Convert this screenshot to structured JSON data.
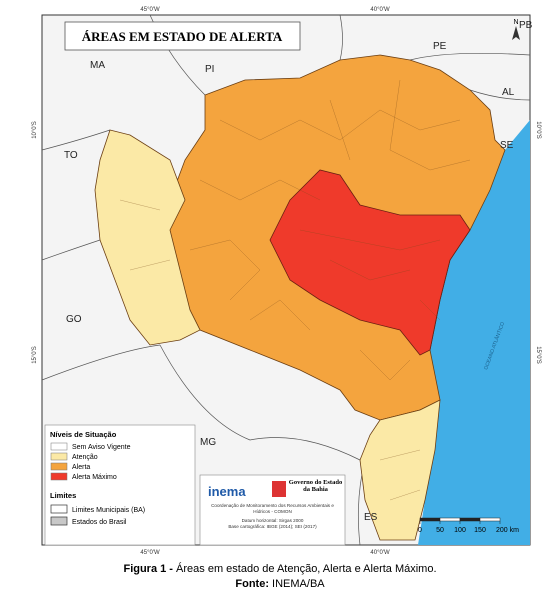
{
  "map": {
    "title": "ÁREAS EM ESTADO DE ALERTA",
    "graticule": {
      "top": [
        "45°0'W",
        "40°0'W"
      ],
      "bottom": [
        "45°0'W",
        "40°0'W"
      ],
      "left": [
        "10°0'S",
        "15°0'S"
      ],
      "right": [
        "10°0'S",
        "15°0'S"
      ]
    },
    "states": [
      "MA",
      "PI",
      "PE",
      "PB",
      "AL",
      "SE",
      "TO",
      "GO",
      "MG",
      "ES"
    ],
    "ocean": "OCEANO ATLÂNTICO",
    "north": "N"
  },
  "legend": {
    "title": "Níveis de Situação",
    "items": [
      {
        "label": "Sem Aviso Vigente",
        "color": "#ffffff"
      },
      {
        "label": "Atenção",
        "color": "#fbe9a6"
      },
      {
        "label": "Alerta",
        "color": "#f4a43e"
      },
      {
        "label": "Alerta Máximo",
        "color": "#ef3a2b"
      }
    ],
    "limits_title": "Limites",
    "limits": [
      {
        "label": "Limites Municipais (BA)",
        "color": "#ffffff"
      },
      {
        "label": "Estados do Brasil",
        "color": "#c8c8c8"
      }
    ]
  },
  "credits": {
    "logo_left": "inema",
    "logo_right": "Governo do Estado da Bahia",
    "lines": [
      "Coordenação de Monitoramento dos Recursos Ambientais e Hídricos - COMON",
      "Datum horizontal: Sirgas 2000",
      "Base cartográfica: IBGE (2014); SEI (2017)"
    ]
  },
  "scale_bar": {
    "ticks": [
      0,
      50,
      100,
      150,
      {
        "value": 200,
        "label": "200 km"
      }
    ]
  },
  "caption": {
    "figure_label": "Figura 1 -",
    "figure_text": "Áreas em estado de Atenção, Alerta e Alerta Máximo.",
    "source_label": "Fonte:",
    "source_text": "INEMA/BA"
  }
}
